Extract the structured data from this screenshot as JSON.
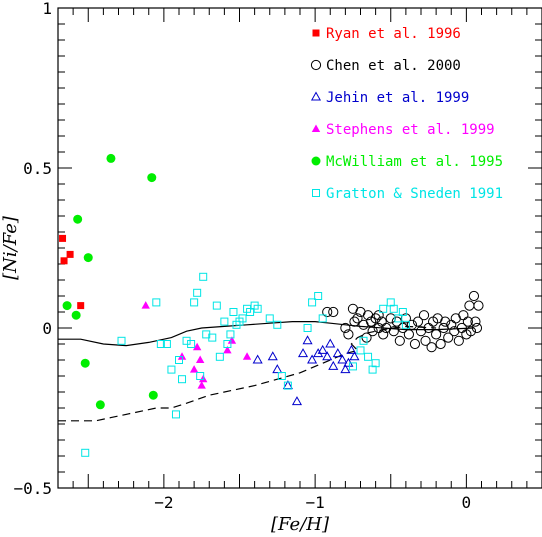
{
  "chart_data": {
    "type": "scatter",
    "xlabel": "[Fe/H]",
    "ylabel": "[Ni/Fe]",
    "xlim": [
      -2.7,
      0.5
    ],
    "ylim": [
      -0.5,
      1.0
    ],
    "x_ticks": [
      {
        "value": -2,
        "label": "−2"
      },
      {
        "value": -1,
        "label": "−1"
      },
      {
        "value": 0,
        "label": "0"
      }
    ],
    "y_ticks": [
      {
        "value": -0.5,
        "label": "−0.5"
      },
      {
        "value": 0,
        "label": "0"
      },
      {
        "value": 0.5,
        "label": "0.5"
      },
      {
        "value": 1.0,
        "label": "1"
      }
    ],
    "legend_position": "top-right",
    "series": [
      {
        "name": "Ryan et al. 1996",
        "marker": "filled-square",
        "color": "#ff0000",
        "points": [
          [
            -2.67,
            0.28
          ],
          [
            -2.66,
            0.21
          ],
          [
            -2.62,
            0.23
          ],
          [
            -2.55,
            0.07
          ]
        ]
      },
      {
        "name": "Chen et al. 2000",
        "marker": "open-circle",
        "color": "#000000",
        "points": [
          [
            -0.92,
            0.05
          ],
          [
            -0.88,
            0.05
          ],
          [
            -0.75,
            0.06
          ],
          [
            -0.74,
            0.02
          ],
          [
            -0.72,
            0.03
          ],
          [
            -0.7,
            0.05
          ],
          [
            -0.68,
            0.01
          ],
          [
            -0.65,
            0.04
          ],
          [
            -0.63,
            0.02
          ],
          [
            -0.62,
            -0.01
          ],
          [
            -0.6,
            0.03
          ],
          [
            -0.58,
            0.0
          ],
          [
            -0.56,
            0.02
          ],
          [
            -0.55,
            -0.02
          ],
          [
            -0.53,
            0.0
          ],
          [
            -0.5,
            0.03
          ],
          [
            -0.48,
            -0.01
          ],
          [
            -0.46,
            0.02
          ],
          [
            -0.44,
            -0.04
          ],
          [
            -0.42,
            0.0
          ],
          [
            -0.4,
            0.03
          ],
          [
            -0.38,
            -0.02
          ],
          [
            -0.36,
            0.01
          ],
          [
            -0.34,
            -0.05
          ],
          [
            -0.32,
            0.02
          ],
          [
            -0.3,
            -0.01
          ],
          [
            -0.28,
            0.04
          ],
          [
            -0.27,
            -0.04
          ],
          [
            -0.25,
            0.0
          ],
          [
            -0.23,
            -0.06
          ],
          [
            -0.22,
            0.02
          ],
          [
            -0.2,
            -0.02
          ],
          [
            -0.19,
            0.03
          ],
          [
            -0.17,
            -0.05
          ],
          [
            -0.15,
            0.0
          ],
          [
            -0.14,
            0.02
          ],
          [
            -0.12,
            -0.03
          ],
          [
            -0.1,
            0.01
          ],
          [
            -0.08,
            -0.01
          ],
          [
            -0.07,
            0.03
          ],
          [
            -0.05,
            -0.04
          ],
          [
            -0.03,
            0.0
          ],
          [
            -0.02,
            0.04
          ],
          [
            0.0,
            -0.02
          ],
          [
            0.01,
            0.02
          ],
          [
            0.02,
            0.07
          ],
          [
            0.03,
            -0.01
          ],
          [
            0.05,
            0.1
          ],
          [
            0.06,
            0.02
          ],
          [
            0.07,
            0.0
          ],
          [
            0.08,
            0.07
          ],
          [
            -0.8,
            0.0
          ],
          [
            -0.78,
            -0.02
          ],
          [
            -0.66,
            -0.03
          ],
          [
            -0.58,
            0.04
          ]
        ]
      },
      {
        "name": "Jehin et al. 1999",
        "marker": "open-triangle",
        "color": "#0000cc",
        "points": [
          [
            -1.38,
            -0.1
          ],
          [
            -1.28,
            -0.09
          ],
          [
            -1.25,
            -0.13
          ],
          [
            -1.18,
            -0.18
          ],
          [
            -1.12,
            -0.23
          ],
          [
            -1.08,
            -0.08
          ],
          [
            -1.05,
            -0.04
          ],
          [
            -1.02,
            -0.1
          ],
          [
            -0.98,
            -0.08
          ],
          [
            -0.95,
            -0.07
          ],
          [
            -0.92,
            -0.09
          ],
          [
            -0.9,
            -0.05
          ],
          [
            -0.88,
            -0.12
          ],
          [
            -0.85,
            -0.08
          ],
          [
            -0.82,
            -0.1
          ],
          [
            -0.8,
            -0.13
          ],
          [
            -0.78,
            -0.11
          ],
          [
            -0.76,
            -0.07
          ],
          [
            -0.74,
            -0.09
          ]
        ]
      },
      {
        "name": "Stephens et al. 1999",
        "marker": "filled-triangle",
        "color": "#ff00ff",
        "points": [
          [
            -2.12,
            0.07
          ],
          [
            -1.88,
            -0.09
          ],
          [
            -1.8,
            -0.13
          ],
          [
            -1.78,
            -0.06
          ],
          [
            -1.76,
            -0.1
          ],
          [
            -1.75,
            -0.18
          ],
          [
            -1.74,
            -0.16
          ],
          [
            -1.58,
            -0.07
          ],
          [
            -1.55,
            -0.04
          ],
          [
            -1.45,
            -0.09
          ]
        ]
      },
      {
        "name": "McWilliam et al. 1995",
        "marker": "filled-circle",
        "color": "#00ee00",
        "points": [
          [
            -2.64,
            0.07
          ],
          [
            -2.58,
            0.04
          ],
          [
            -2.57,
            0.34
          ],
          [
            -2.52,
            -0.11
          ],
          [
            -2.5,
            0.22
          ],
          [
            -2.42,
            -0.24
          ],
          [
            -2.35,
            0.53
          ],
          [
            -2.08,
            0.47
          ],
          [
            -2.07,
            -0.21
          ]
        ]
      },
      {
        "name": "Gratton & Sneden 1991",
        "marker": "open-square",
        "color": "#00e5e5",
        "points": [
          [
            -2.52,
            -0.39
          ],
          [
            -2.28,
            -0.04
          ],
          [
            -2.05,
            0.08
          ],
          [
            -2.02,
            -0.05
          ],
          [
            -1.98,
            -0.05
          ],
          [
            -1.95,
            -0.13
          ],
          [
            -1.92,
            -0.27
          ],
          [
            -1.9,
            -0.1
          ],
          [
            -1.88,
            -0.16
          ],
          [
            -1.85,
            -0.04
          ],
          [
            -1.82,
            -0.05
          ],
          [
            -1.8,
            0.08
          ],
          [
            -1.78,
            0.11
          ],
          [
            -1.76,
            -0.15
          ],
          [
            -1.74,
            0.16
          ],
          [
            -1.72,
            -0.02
          ],
          [
            -1.68,
            -0.03
          ],
          [
            -1.65,
            0.07
          ],
          [
            -1.63,
            -0.09
          ],
          [
            -1.6,
            0.02
          ],
          [
            -1.58,
            -0.05
          ],
          [
            -1.56,
            -0.02
          ],
          [
            -1.54,
            0.05
          ],
          [
            -1.52,
            0.01
          ],
          [
            -1.5,
            0.02
          ],
          [
            -1.48,
            0.03
          ],
          [
            -1.45,
            0.06
          ],
          [
            -1.43,
            0.05
          ],
          [
            -1.4,
            0.07
          ],
          [
            -1.38,
            0.06
          ],
          [
            -1.3,
            0.03
          ],
          [
            -1.25,
            0.01
          ],
          [
            -1.22,
            -0.15
          ],
          [
            -1.18,
            -0.18
          ],
          [
            -1.05,
            0.0
          ],
          [
            -1.02,
            0.08
          ],
          [
            -0.98,
            0.1
          ],
          [
            -0.95,
            0.03
          ],
          [
            -0.75,
            -0.12
          ],
          [
            -0.7,
            -0.07
          ],
          [
            -0.68,
            -0.04
          ],
          [
            -0.65,
            -0.09
          ],
          [
            -0.62,
            -0.13
          ],
          [
            -0.6,
            -0.11
          ],
          [
            -0.55,
            0.06
          ],
          [
            -0.5,
            0.08
          ],
          [
            -0.48,
            0.06
          ],
          [
            -0.45,
            0.03
          ],
          [
            -0.42,
            0.05
          ],
          [
            -0.4,
            0.01
          ]
        ]
      }
    ],
    "lines": [
      {
        "style": "solid",
        "color": "#000000",
        "points": [
          [
            -2.7,
            -0.035
          ],
          [
            -2.55,
            -0.035
          ],
          [
            -2.4,
            -0.05
          ],
          [
            -2.25,
            -0.055
          ],
          [
            -2.1,
            -0.045
          ],
          [
            -1.95,
            -0.03
          ],
          [
            -1.85,
            -0.01
          ],
          [
            -1.75,
            0.0
          ],
          [
            -1.6,
            0.005
          ],
          [
            -1.45,
            0.01
          ],
          [
            -1.3,
            0.015
          ],
          [
            -1.15,
            0.02
          ],
          [
            -1.0,
            0.02
          ],
          [
            -0.9,
            0.015
          ],
          [
            -0.8,
            0.01
          ],
          [
            -0.7,
            0.005
          ],
          [
            -0.55,
            0.0
          ],
          [
            -0.4,
            -0.005
          ],
          [
            -0.2,
            -0.005
          ],
          [
            0.05,
            0.0
          ]
        ]
      },
      {
        "style": "dashed",
        "color": "#000000",
        "points": [
          [
            -2.7,
            -0.29
          ],
          [
            -2.45,
            -0.29
          ],
          [
            -2.35,
            -0.28
          ],
          [
            -2.2,
            -0.265
          ],
          [
            -2.05,
            -0.25
          ],
          [
            -1.95,
            -0.25
          ],
          [
            -1.85,
            -0.235
          ],
          [
            -1.7,
            -0.21
          ],
          [
            -1.55,
            -0.195
          ],
          [
            -1.4,
            -0.18
          ],
          [
            -1.25,
            -0.16
          ],
          [
            -1.1,
            -0.14
          ],
          [
            -0.95,
            -0.11
          ],
          [
            -0.8,
            -0.08
          ],
          [
            -0.72,
            -0.07
          ],
          [
            -0.76,
            -0.05
          ],
          [
            -0.72,
            -0.03
          ],
          [
            -0.65,
            -0.015
          ],
          [
            -0.55,
            -0.005
          ],
          [
            -0.4,
            0.005
          ],
          [
            -0.2,
            0.0
          ]
        ]
      }
    ]
  }
}
